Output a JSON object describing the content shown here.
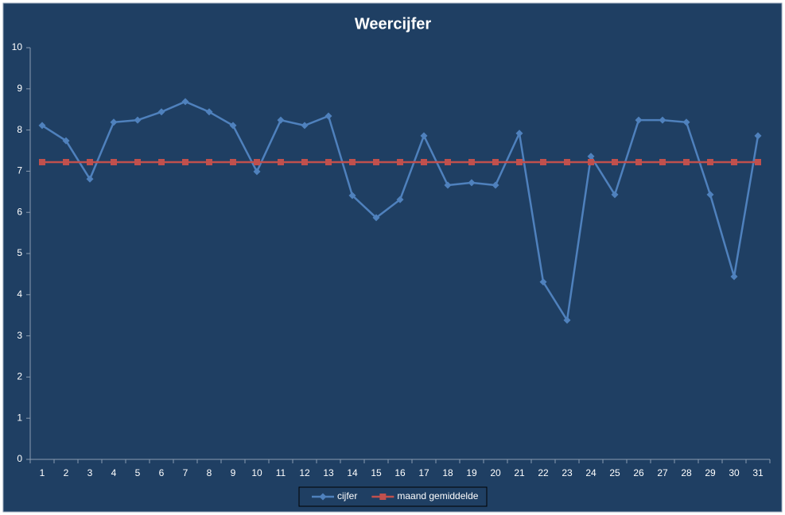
{
  "chart_data": {
    "type": "line",
    "title": "Weercijfer",
    "categories": [
      "1",
      "2",
      "3",
      "4",
      "5",
      "6",
      "7",
      "8",
      "9",
      "10",
      "11",
      "12",
      "13",
      "14",
      "15",
      "16",
      "17",
      "18",
      "19",
      "20",
      "21",
      "22",
      "23",
      "24",
      "25",
      "26",
      "27",
      "28",
      "29",
      "30",
      "31"
    ],
    "series": [
      {
        "name": "cijfer",
        "color": "#4f81bd",
        "marker": "diamond",
        "values": [
          8.11,
          7.74,
          6.81,
          8.19,
          8.24,
          8.44,
          8.69,
          8.44,
          8.11,
          6.99,
          8.24,
          8.11,
          8.34,
          6.41,
          5.87,
          6.31,
          7.86,
          6.66,
          6.72,
          6.66,
          7.92,
          4.31,
          3.38,
          7.36,
          6.43,
          8.24,
          8.24,
          8.19,
          6.43,
          4.44,
          7.86
        ]
      },
      {
        "name": "maand gemiddelde",
        "color": "#c0504d",
        "marker": "square",
        "values": [
          7.22,
          7.22,
          7.22,
          7.22,
          7.22,
          7.22,
          7.22,
          7.22,
          7.22,
          7.22,
          7.22,
          7.22,
          7.22,
          7.22,
          7.22,
          7.22,
          7.22,
          7.22,
          7.22,
          7.22,
          7.22,
          7.22,
          7.22,
          7.22,
          7.22,
          7.22,
          7.22,
          7.22,
          7.22,
          7.22,
          7.22
        ]
      }
    ],
    "ylim": [
      0,
      10
    ],
    "yticks": [
      0,
      1,
      2,
      3,
      4,
      5,
      6,
      7,
      8,
      9,
      10
    ],
    "grid": false,
    "legend": "bottom"
  }
}
